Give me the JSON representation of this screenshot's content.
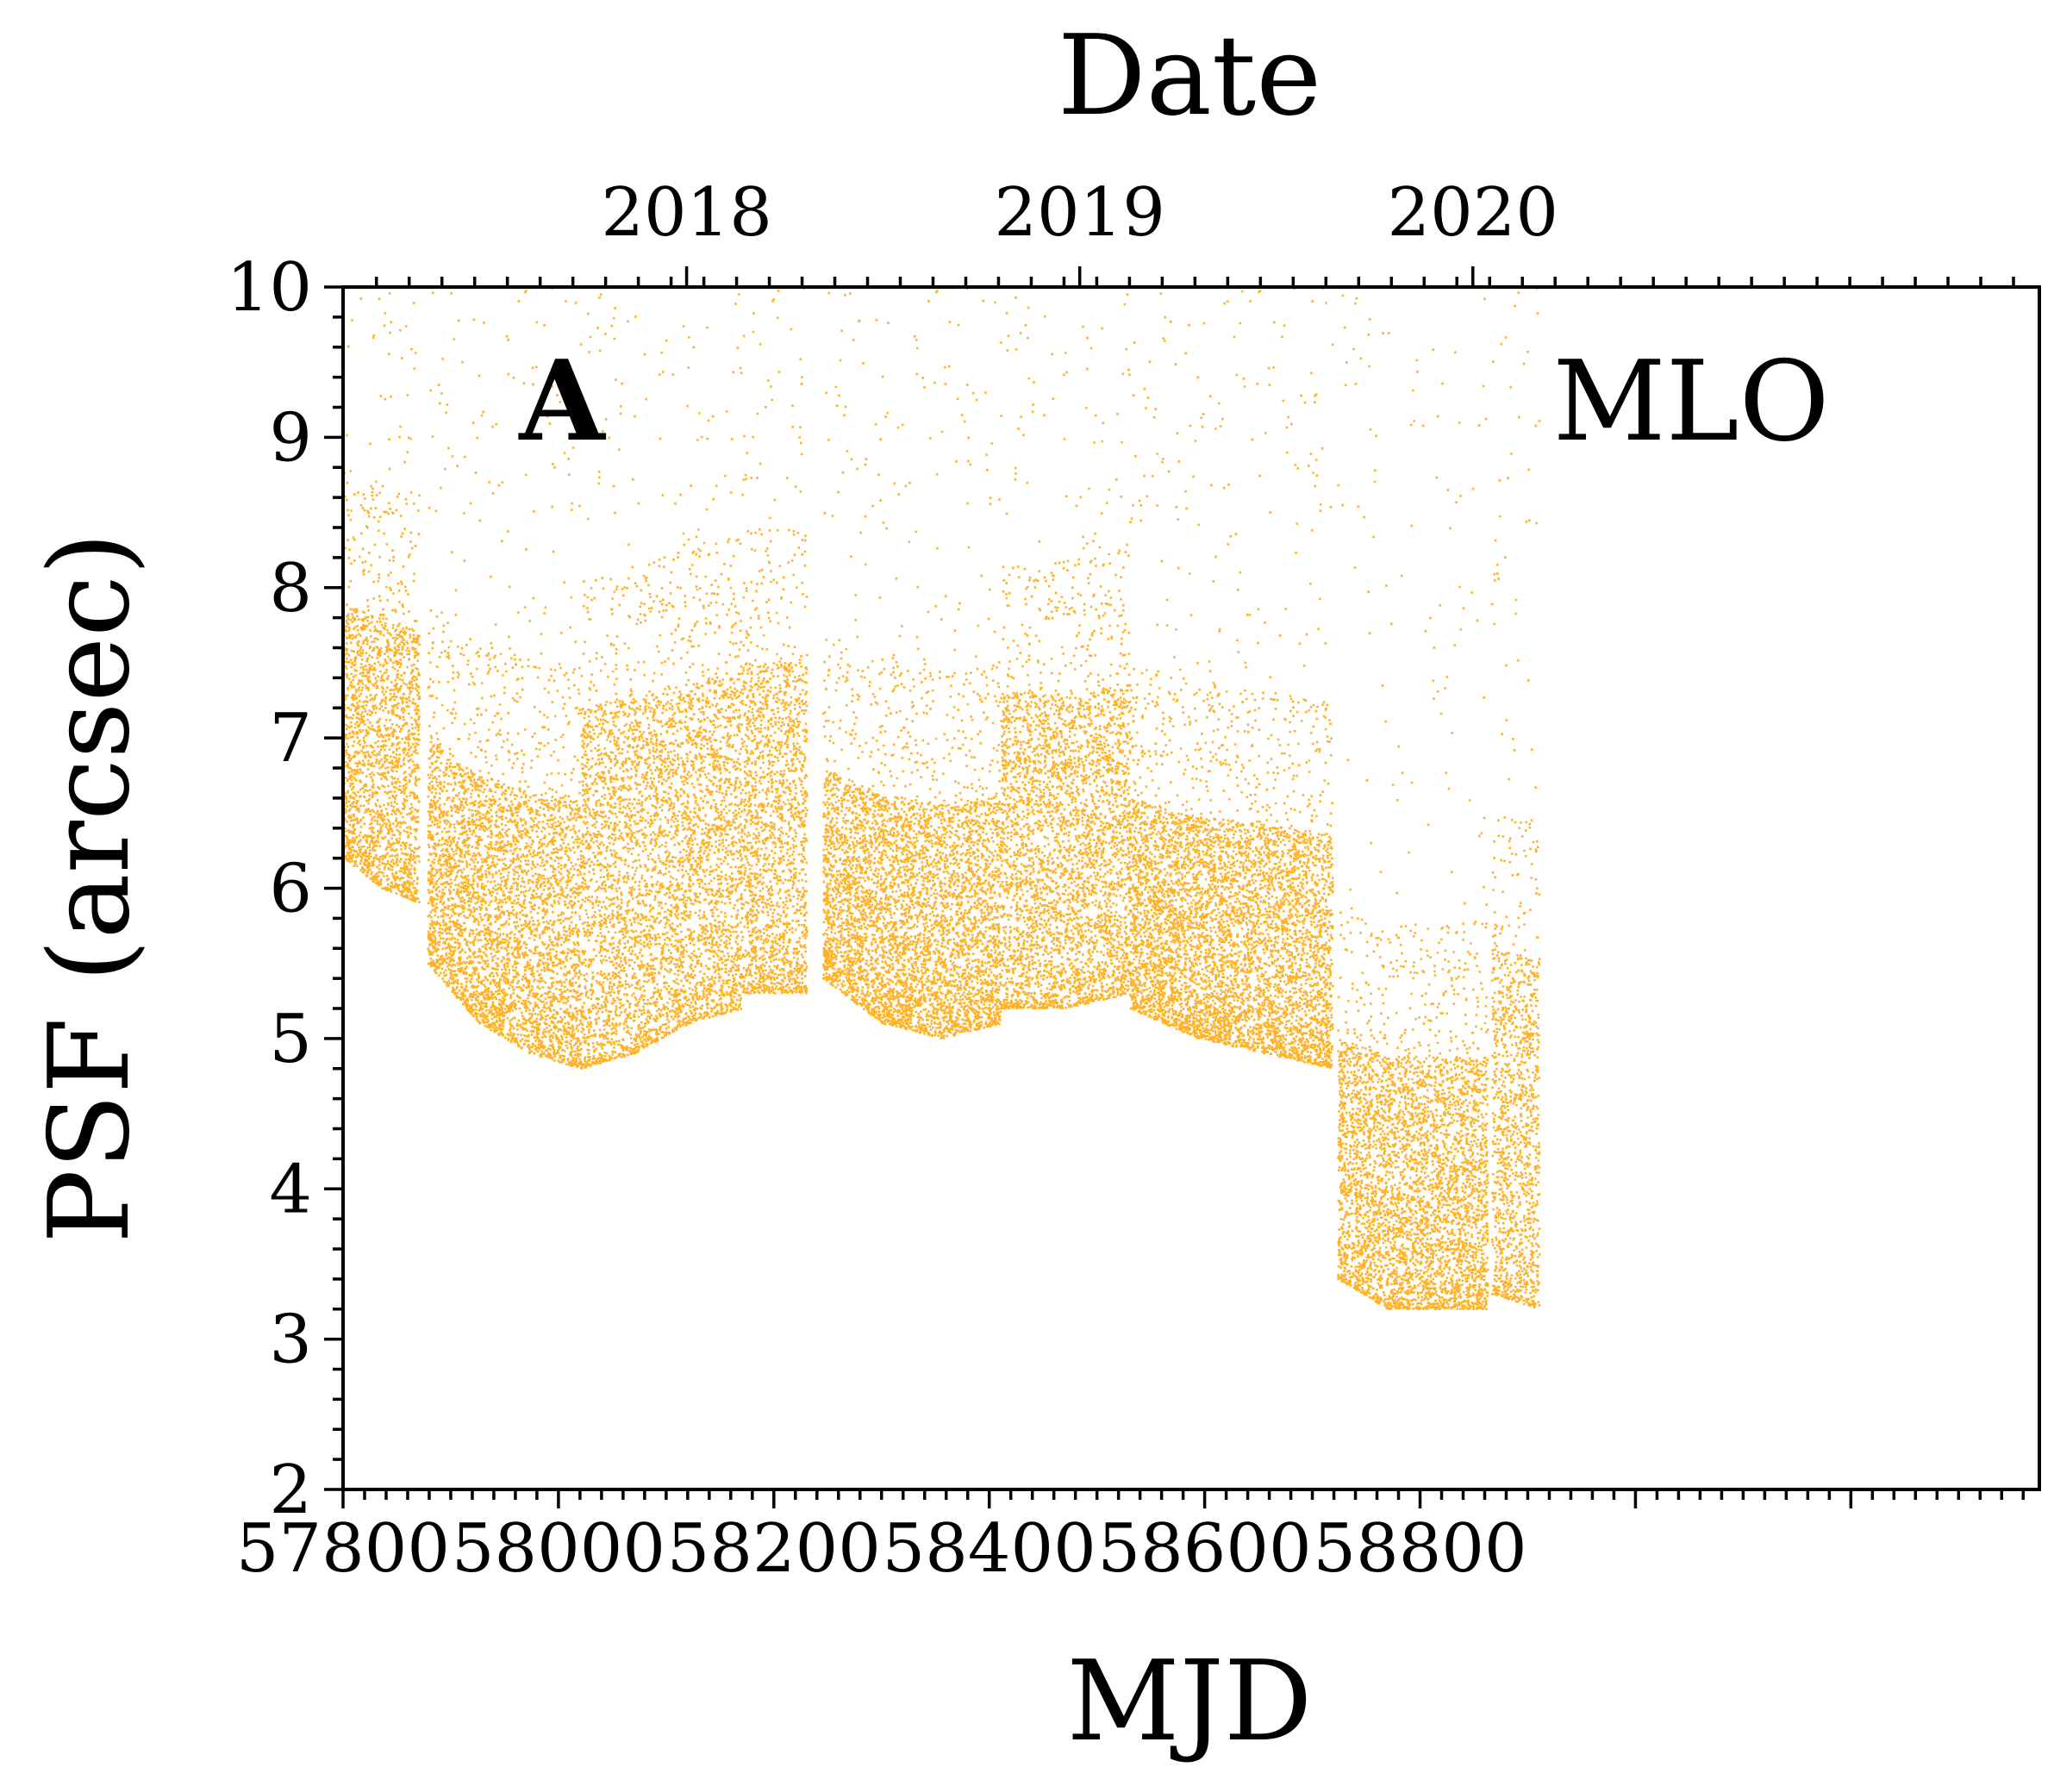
{
  "chart_data": {
    "type": "scatter",
    "title": "",
    "panel_label": "A",
    "site_label": "MLO",
    "xlabel": "MJD",
    "ylabel": "PSF (arcsec)",
    "top_xlabel": "Date",
    "xlim": [
      57800,
      59375
    ],
    "ylim": [
      2,
      10
    ],
    "x_ticks": [
      57800,
      58000,
      58200,
      58400,
      58600,
      58800
    ],
    "x_tick_labels": [
      "57800",
      "58000",
      "58200",
      "58400",
      "58600",
      "58800"
    ],
    "y_ticks": [
      2,
      3,
      4,
      5,
      6,
      7,
      8,
      9,
      10
    ],
    "y_tick_labels": [
      "2",
      "3",
      "4",
      "5",
      "6",
      "7",
      "8",
      "9",
      "10"
    ],
    "top_ticks": [
      58119,
      58484,
      58849
    ],
    "top_tick_labels": [
      "2018",
      "2019",
      "2020"
    ],
    "point_color": "#FFA500",
    "grid": false,
    "series": [
      {
        "name": "PSF",
        "segments": [
          {
            "x_start": 57800,
            "x_end": 57870,
            "floor": [
              6.2,
              6.0,
              5.9
            ],
            "median": 6.9,
            "p90": 7.9
          },
          {
            "x_start": 57878,
            "x_end": 58020,
            "floor": [
              5.5,
              5.1,
              4.9,
              4.8
            ],
            "median": 5.9,
            "p90": 7.0
          },
          {
            "x_start": 58020,
            "x_end": 58170,
            "floor": [
              4.8,
              4.9,
              5.1,
              5.2
            ],
            "median": 6.0,
            "p90": 7.2
          },
          {
            "x_start": 58170,
            "x_end": 58230,
            "floor": [
              5.3,
              5.3
            ],
            "median": 6.2,
            "p90": 7.5
          },
          {
            "x_start": 58245,
            "x_end": 58410,
            "floor": [
              5.4,
              5.1,
              5.0,
              5.1
            ],
            "median": 5.8,
            "p90": 6.8
          },
          {
            "x_start": 58410,
            "x_end": 58530,
            "floor": [
              5.2,
              5.2,
              5.3
            ],
            "median": 6.1,
            "p90": 7.3
          },
          {
            "x_start": 58530,
            "x_end": 58718,
            "floor": [
              5.2,
              5.0,
              4.9,
              4.8
            ],
            "median": 5.7,
            "p90": 6.6
          },
          {
            "x_start": 58723,
            "x_end": 58862,
            "floor": [
              3.4,
              3.2,
              3.2,
              3.2
            ],
            "median": 4.0,
            "p90": 5.0
          },
          {
            "x_start": 58866,
            "x_end": 58910,
            "floor": [
              3.3,
              3.2
            ],
            "median": 4.2,
            "p90": 5.6
          }
        ]
      }
    ]
  }
}
